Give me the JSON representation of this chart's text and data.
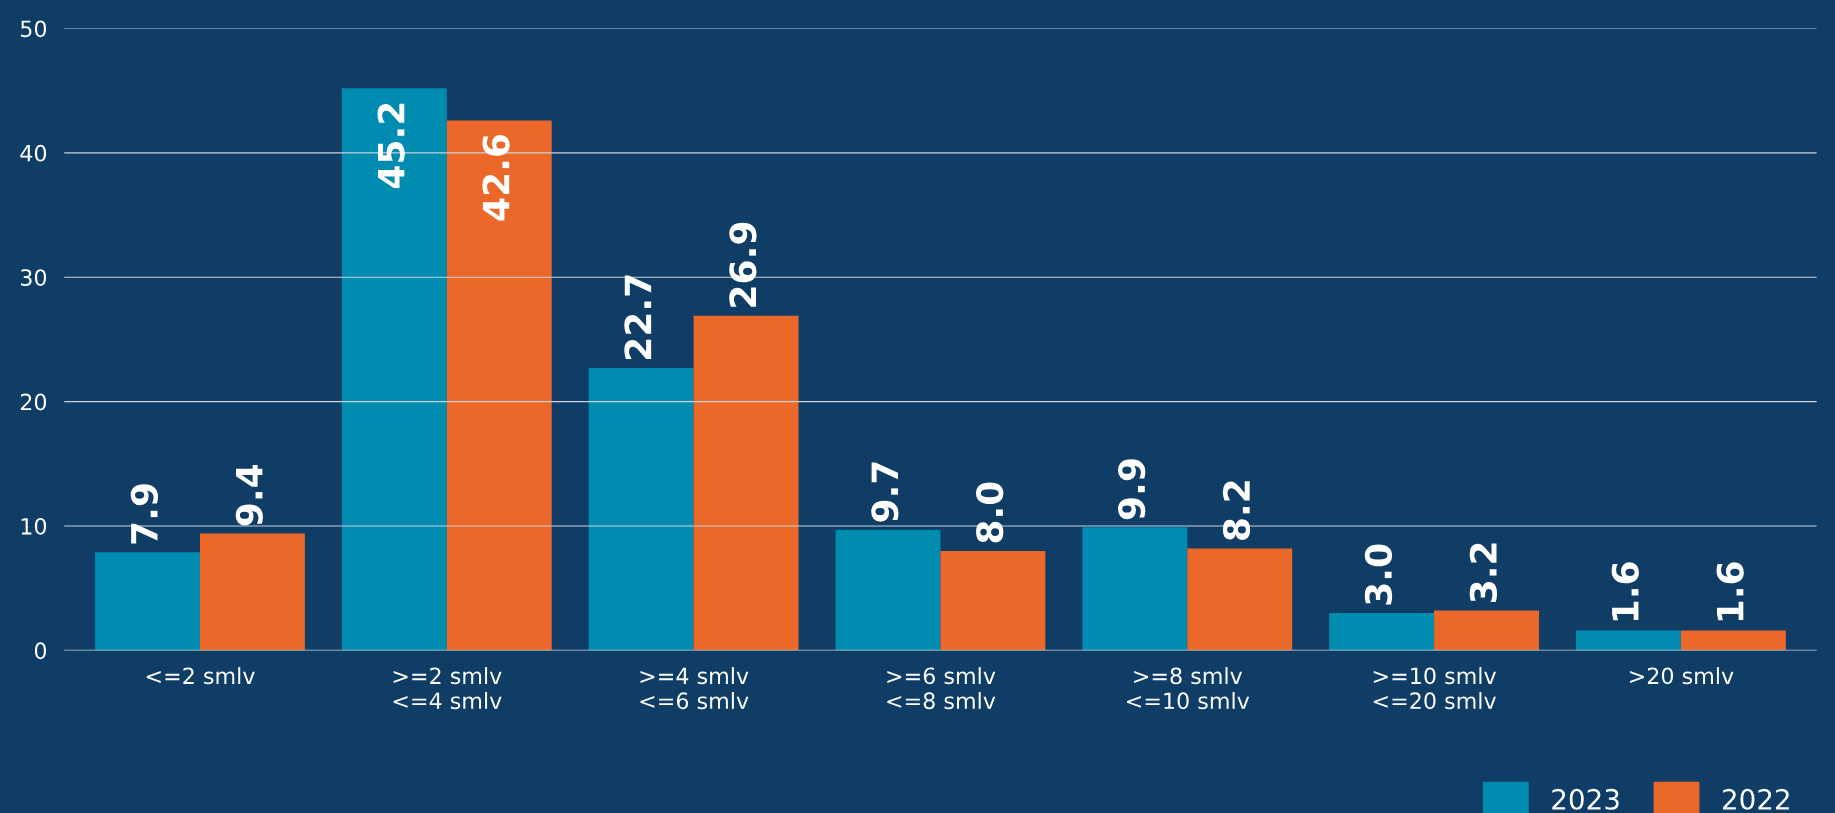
{
  "chart_data": {
    "type": "bar",
    "categories": [
      "<=2 smlv",
      ">=2 smlv\n<=4 smlv",
      ">=4 smlv\n<=6 smlv",
      ">=6 smlv\n<=8 smlv",
      ">=8 smlv\n<=10 smlv",
      ">=10 smlv\n<=20 smlv",
      ">20 smlv"
    ],
    "series": [
      {
        "name": "2023",
        "color": "#008bb0",
        "values": [
          7.9,
          45.2,
          22.7,
          9.7,
          9.9,
          3.0,
          1.6
        ],
        "value_labels": [
          "7.9",
          "45.2",
          "22.7",
          "9.7",
          "9.9",
          "3.0",
          "1.6"
        ]
      },
      {
        "name": "2022",
        "color": "#ec6829",
        "values": [
          9.4,
          42.6,
          26.9,
          8.0,
          8.2,
          3.2,
          1.6
        ],
        "value_labels": [
          "9.4",
          "42.6",
          "26.9",
          "8.0",
          "8.2",
          "3.2",
          "1.6"
        ]
      }
    ],
    "ylim": [
      0,
      50
    ],
    "yticks": [
      0,
      10,
      20,
      30,
      40,
      50
    ],
    "grid": "y",
    "legend": "bottom right"
  }
}
